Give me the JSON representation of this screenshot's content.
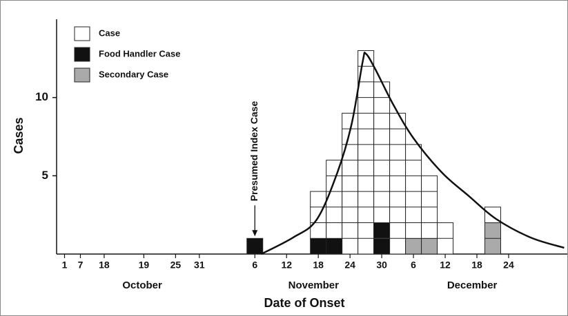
{
  "chart_data": {
    "type": "stacked_histogram",
    "xlabel": "Date of Onset",
    "ylabel": "Cases",
    "x": [
      12,
      13,
      14,
      15,
      16,
      17,
      18,
      19,
      20,
      21,
      22,
      23,
      24,
      25,
      26,
      27
    ],
    "series": [
      {
        "name": "Case",
        "color": "#ffffff",
        "values": [
          0,
          0,
          0,
          0,
          3,
          5,
          9,
          13,
          9,
          9,
          6,
          4,
          2,
          0,
          0,
          1
        ]
      },
      {
        "name": "Food Handler Case",
        "color": "#111111",
        "values": [
          1,
          0,
          0,
          0,
          1,
          1,
          0,
          0,
          2,
          0,
          0,
          0,
          0,
          0,
          0,
          0
        ]
      },
      {
        "name": "Secondary Case",
        "color": "#aaaaaa",
        "values": [
          0,
          0,
          0,
          0,
          0,
          0,
          0,
          0,
          0,
          0,
          1,
          1,
          0,
          0,
          0,
          2
        ]
      }
    ],
    "curve": {
      "x": [
        12.9,
        14.9,
        16.4,
        17.7,
        18.6,
        19.3,
        19.5,
        20.1,
        21.2,
        22.5,
        24.3,
        26,
        27.7,
        29.9,
        32
      ],
      "y": [
        0,
        1.05,
        2.2,
        5.2,
        8.3,
        12.3,
        12.8,
        11.8,
        9.6,
        7.4,
        5.2,
        3.7,
        2.25,
        1.05,
        0.4
      ]
    },
    "xlim": [
      0,
      32.2
    ],
    "ylim": [
      0,
      15
    ],
    "yticks": [
      5,
      10
    ],
    "xticks": [
      {
        "value": 0.5,
        "label": "1"
      },
      {
        "value": 1.5,
        "label": "7"
      },
      {
        "value": 3,
        "label": "18"
      },
      {
        "value": 5.5,
        "label": "19"
      },
      {
        "value": 7.5,
        "label": "25"
      },
      {
        "value": 9,
        "label": "31"
      },
      {
        "value": 12.5,
        "label": "6"
      },
      {
        "value": 14.5,
        "label": "12"
      },
      {
        "value": 16.5,
        "label": "18"
      },
      {
        "value": 18.5,
        "label": "24"
      },
      {
        "value": 20.5,
        "label": "30"
      },
      {
        "value": 22.5,
        "label": "6"
      },
      {
        "value": 24.5,
        "label": "12"
      },
      {
        "value": 26.5,
        "label": "18"
      },
      {
        "value": 28.5,
        "label": "24"
      }
    ],
    "month_labels": [
      {
        "value": 5.4,
        "label": "October"
      },
      {
        "value": 16.2,
        "label": "November"
      },
      {
        "value": 26.2,
        "label": "December"
      }
    ],
    "annotation": {
      "text": "Presumed Index Case",
      "x": 12.5,
      "y": 1
    }
  }
}
